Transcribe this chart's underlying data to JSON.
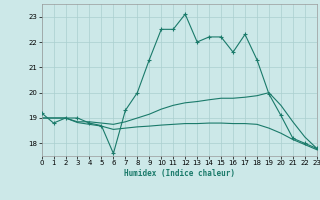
{
  "xlabel": "Humidex (Indice chaleur)",
  "ylabel": "",
  "background_color": "#cce8e8",
  "grid_color": "#aacfcf",
  "line_color": "#1a7a6a",
  "xlim": [
    0,
    23
  ],
  "ylim": [
    17.5,
    23.5
  ],
  "yticks": [
    18,
    19,
    20,
    21,
    22,
    23
  ],
  "xticks": [
    0,
    1,
    2,
    3,
    4,
    5,
    6,
    7,
    8,
    9,
    10,
    11,
    12,
    13,
    14,
    15,
    16,
    17,
    18,
    19,
    20,
    21,
    22,
    23
  ],
  "line1_x": [
    0,
    1,
    2,
    3,
    4,
    5,
    6,
    7,
    8,
    9,
    10,
    11,
    12,
    13,
    14,
    15,
    16,
    17,
    18,
    19,
    20,
    21,
    22,
    23
  ],
  "line1_y": [
    19.2,
    18.8,
    19.0,
    19.0,
    18.8,
    18.7,
    17.6,
    19.3,
    20.0,
    21.3,
    22.5,
    22.5,
    23.1,
    22.0,
    22.2,
    22.2,
    21.6,
    22.3,
    21.3,
    19.95,
    19.1,
    18.2,
    18.0,
    17.8
  ],
  "line2_x": [
    0,
    1,
    2,
    3,
    4,
    5,
    6,
    7,
    8,
    9,
    10,
    11,
    12,
    13,
    14,
    15,
    16,
    17,
    18,
    19,
    20,
    21,
    22,
    23
  ],
  "line2_y": [
    19.0,
    19.0,
    19.0,
    18.85,
    18.85,
    18.8,
    18.75,
    18.85,
    19.0,
    19.15,
    19.35,
    19.5,
    19.6,
    19.65,
    19.72,
    19.78,
    19.78,
    19.82,
    19.88,
    20.0,
    19.5,
    18.85,
    18.25,
    17.8
  ],
  "line3_x": [
    0,
    1,
    2,
    3,
    4,
    5,
    6,
    7,
    8,
    9,
    10,
    11,
    12,
    13,
    14,
    15,
    16,
    17,
    18,
    19,
    20,
    21,
    22,
    23
  ],
  "line3_y": [
    19.0,
    19.0,
    19.0,
    18.82,
    18.75,
    18.68,
    18.55,
    18.6,
    18.65,
    18.68,
    18.72,
    18.75,
    18.78,
    18.78,
    18.8,
    18.8,
    18.78,
    18.78,
    18.75,
    18.6,
    18.4,
    18.15,
    17.95,
    17.75
  ]
}
